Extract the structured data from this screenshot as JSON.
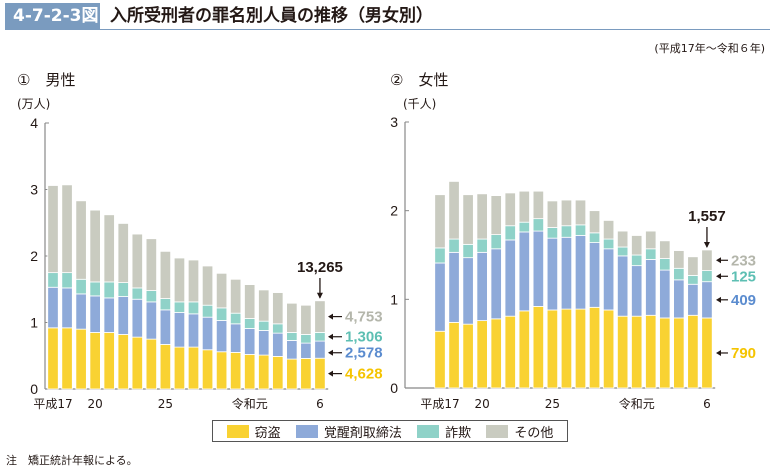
{
  "figure": {
    "number": "4-7-2-3図",
    "title": "入所受刑者の罪名別人員の推移（男女別）",
    "period": "(平成17年～令和６年)",
    "note": "注　矯正統計年報による。"
  },
  "colors": {
    "theft": "#f9d232",
    "stimulants": "#8eaad9",
    "fraud": "#8fd2c8",
    "other": "#c9cbc0",
    "badge": "#7a9bbf",
    "theft_label": "#f5c400",
    "stimulants_label": "#5b8ccf",
    "fraud_label": "#5dbfb3",
    "other_label": "#b4b6ab"
  },
  "legend": [
    {
      "key": "theft",
      "label": "窃盗"
    },
    {
      "key": "stimulants",
      "label": "覚醒剤取締法"
    },
    {
      "key": "fraud",
      "label": "詐欺"
    },
    {
      "key": "other",
      "label": "その他"
    }
  ],
  "chart_data": [
    {
      "type": "bar",
      "stacked": true,
      "panel_label": "①　男性",
      "title": "男性",
      "ylabel": "(万人)",
      "ylim": [
        0,
        4
      ],
      "yticks": [
        "0",
        "1",
        "2",
        "3",
        "4"
      ],
      "categories": [
        "H17",
        "H18",
        "H19",
        "H20",
        "H21",
        "H22",
        "H23",
        "H24",
        "H25",
        "H26",
        "H27",
        "H28",
        "H29",
        "H30",
        "R1",
        "R2",
        "R3",
        "R4",
        "R5",
        "R6"
      ],
      "xtick_labels": [
        {
          "index": 0,
          "label": "平成17"
        },
        {
          "index": 3,
          "label": "20"
        },
        {
          "index": 8,
          "label": "25"
        },
        {
          "index": 14,
          "label": "令和元"
        },
        {
          "index": 19,
          "label": "6"
        }
      ],
      "series": [
        {
          "name": "窃盗",
          "key": "theft",
          "values": [
            0.92,
            0.92,
            0.9,
            0.85,
            0.85,
            0.82,
            0.78,
            0.75,
            0.67,
            0.63,
            0.63,
            0.59,
            0.56,
            0.55,
            0.52,
            0.51,
            0.49,
            0.45,
            0.46,
            0.4628
          ]
        },
        {
          "name": "覚醒剤取締法",
          "key": "stimulants",
          "values": [
            0.61,
            0.6,
            0.53,
            0.55,
            0.52,
            0.57,
            0.57,
            0.56,
            0.52,
            0.52,
            0.5,
            0.49,
            0.47,
            0.43,
            0.39,
            0.37,
            0.35,
            0.28,
            0.23,
            0.2578
          ]
        },
        {
          "name": "詐欺",
          "key": "fraud",
          "values": [
            0.22,
            0.23,
            0.22,
            0.21,
            0.24,
            0.21,
            0.17,
            0.17,
            0.17,
            0.16,
            0.18,
            0.18,
            0.19,
            0.16,
            0.15,
            0.14,
            0.14,
            0.12,
            0.13,
            0.1306
          ]
        },
        {
          "name": "その他",
          "key": "other",
          "values": [
            1.31,
            1.32,
            1.18,
            1.08,
            1.01,
            0.89,
            0.81,
            0.78,
            0.71,
            0.66,
            0.63,
            0.59,
            0.52,
            0.51,
            0.51,
            0.47,
            0.47,
            0.44,
            0.44,
            0.4753
          ]
        }
      ],
      "annotations": {
        "total": "13,265",
        "theft": "4,628",
        "stimulants": "2,578",
        "fraud": "1,306",
        "other": "4,753"
      }
    },
    {
      "type": "bar",
      "stacked": true,
      "panel_label": "②　女性",
      "title": "女性",
      "ylabel": "(千人)",
      "ylim": [
        0,
        3
      ],
      "yticks": [
        "0",
        "1",
        "2",
        "3"
      ],
      "categories": [
        "H17",
        "H18",
        "H19",
        "H20",
        "H21",
        "H22",
        "H23",
        "H24",
        "H25",
        "H26",
        "H27",
        "H28",
        "H29",
        "H30",
        "R1",
        "R2",
        "R3",
        "R4",
        "R5",
        "R6"
      ],
      "xtick_labels": [
        {
          "index": 0,
          "label": "平成17"
        },
        {
          "index": 3,
          "label": "20"
        },
        {
          "index": 8,
          "label": "25"
        },
        {
          "index": 14,
          "label": "令和元"
        },
        {
          "index": 19,
          "label": "6"
        }
      ],
      "series": [
        {
          "name": "窃盗",
          "key": "theft",
          "values": [
            0.64,
            0.74,
            0.72,
            0.76,
            0.78,
            0.81,
            0.87,
            0.92,
            0.88,
            0.89,
            0.89,
            0.91,
            0.88,
            0.81,
            0.81,
            0.82,
            0.79,
            0.79,
            0.82,
            0.79
          ]
        },
        {
          "name": "覚醒剤取締法",
          "key": "stimulants",
          "values": [
            0.77,
            0.79,
            0.75,
            0.77,
            0.79,
            0.86,
            0.89,
            0.85,
            0.81,
            0.81,
            0.83,
            0.73,
            0.69,
            0.68,
            0.57,
            0.63,
            0.54,
            0.43,
            0.35,
            0.409
          ]
        },
        {
          "name": "詐欺",
          "key": "fraud",
          "values": [
            0.17,
            0.15,
            0.15,
            0.15,
            0.16,
            0.16,
            0.11,
            0.14,
            0.12,
            0.13,
            0.12,
            0.11,
            0.11,
            0.1,
            0.12,
            0.12,
            0.13,
            0.13,
            0.1,
            0.125
          ]
        },
        {
          "name": "その他",
          "key": "other",
          "values": [
            0.6,
            0.65,
            0.56,
            0.51,
            0.44,
            0.37,
            0.35,
            0.31,
            0.3,
            0.29,
            0.28,
            0.25,
            0.21,
            0.18,
            0.22,
            0.2,
            0.2,
            0.2,
            0.21,
            0.233
          ]
        }
      ],
      "annotations": {
        "total": "1,557",
        "theft": "790",
        "stimulants": "409",
        "fraud": "125",
        "other": "233"
      }
    }
  ]
}
